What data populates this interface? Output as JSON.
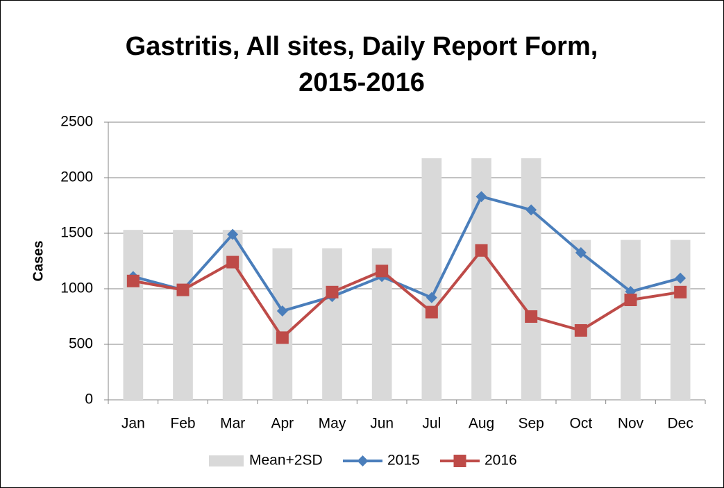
{
  "chart_data": {
    "type": "bar",
    "title": "Gastritis, All sites, Daily Report Form, 2015-2016",
    "y_label": "Cases",
    "categories": [
      "Jan",
      "Feb",
      "Mar",
      "Apr",
      "May",
      "Jun",
      "Jul",
      "Aug",
      "Sep",
      "Oct",
      "Nov",
      "Dec"
    ],
    "series": [
      {
        "name": "Mean+2SD",
        "type": "bar",
        "color": "#d9d9d9",
        "values": [
          1530,
          1530,
          1530,
          1365,
          1365,
          1365,
          2175,
          2175,
          2175,
          1440,
          1440,
          1440
        ]
      },
      {
        "name": "2015",
        "type": "line",
        "marker": "diamond",
        "color": "#4a7ebb",
        "values": [
          1110,
          990,
          1490,
          800,
          930,
          1110,
          920,
          1830,
          1710,
          1325,
          975,
          1095
        ]
      },
      {
        "name": "2016",
        "type": "line",
        "marker": "square",
        "color": "#be4b48",
        "values": [
          1070,
          990,
          1240,
          560,
          970,
          1160,
          790,
          1345,
          750,
          625,
          900,
          970
        ]
      }
    ],
    "ylim": [
      0,
      2500
    ],
    "yticks": [
      0,
      500,
      1000,
      1500,
      2000,
      2500
    ],
    "grid": true,
    "legend": "bottom"
  }
}
